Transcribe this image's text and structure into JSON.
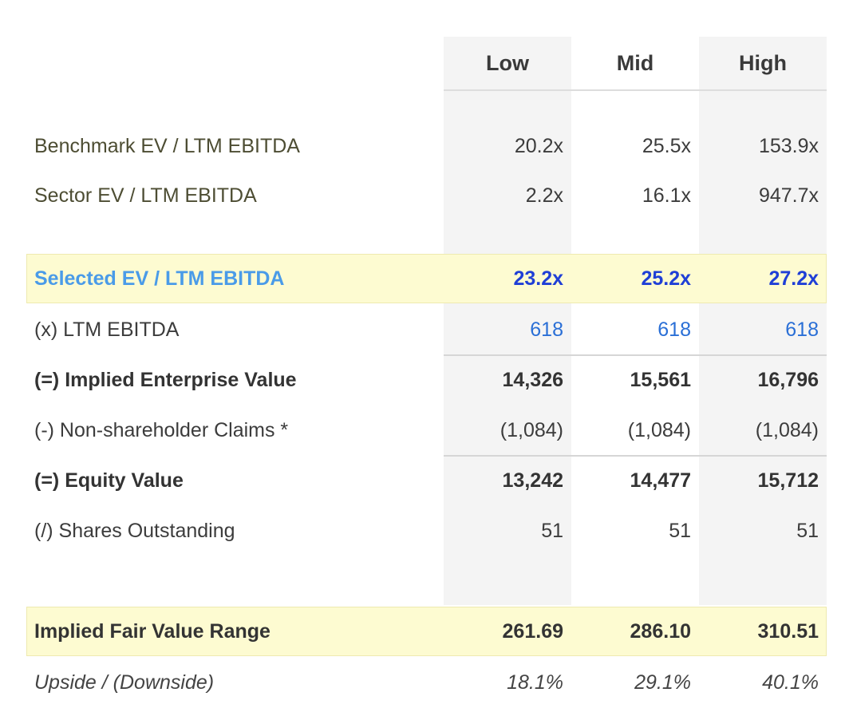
{
  "columns": [
    "Low",
    "Mid",
    "High"
  ],
  "rows": {
    "benchmark": {
      "label": "Benchmark EV / LTM EBITDA",
      "values": [
        "20.2x",
        "25.5x",
        "153.9x"
      ]
    },
    "sector": {
      "label": "Sector EV / LTM EBITDA",
      "values": [
        "2.2x",
        "16.1x",
        "947.7x"
      ]
    },
    "selected": {
      "label": "Selected EV / LTM EBITDA",
      "values": [
        "23.2x",
        "25.2x",
        "27.2x"
      ]
    },
    "ebitda": {
      "label": "(x) LTM EBITDA",
      "values": [
        "618",
        "618",
        "618"
      ]
    },
    "implied_ev": {
      "label": "(=) Implied Enterprise Value",
      "values": [
        "14,326",
        "15,561",
        "16,796"
      ]
    },
    "claims": {
      "label": "(-) Non-shareholder Claims *",
      "values": [
        "(1,084)",
        "(1,084)",
        "(1,084)"
      ]
    },
    "equity": {
      "label": "(=) Equity Value",
      "values": [
        "13,242",
        "14,477",
        "15,712"
      ]
    },
    "shares": {
      "label": "(/) Shares Outstanding",
      "values": [
        "51",
        "51",
        "51"
      ]
    },
    "fair_value": {
      "label": "Implied Fair Value Range",
      "values": [
        "261.69",
        "286.10",
        "310.51"
      ]
    },
    "upside": {
      "label": "Upside / (Downside)",
      "values": [
        "18.1%",
        "29.1%",
        "40.1%"
      ]
    }
  },
  "colors": {
    "highlight_bg": "#fdfbd1",
    "column_shade": "#f4f4f4",
    "selected_label": "#4a9be8",
    "selected_values": "#1f3fd6",
    "ebitda_values": "#2a6fd6"
  }
}
